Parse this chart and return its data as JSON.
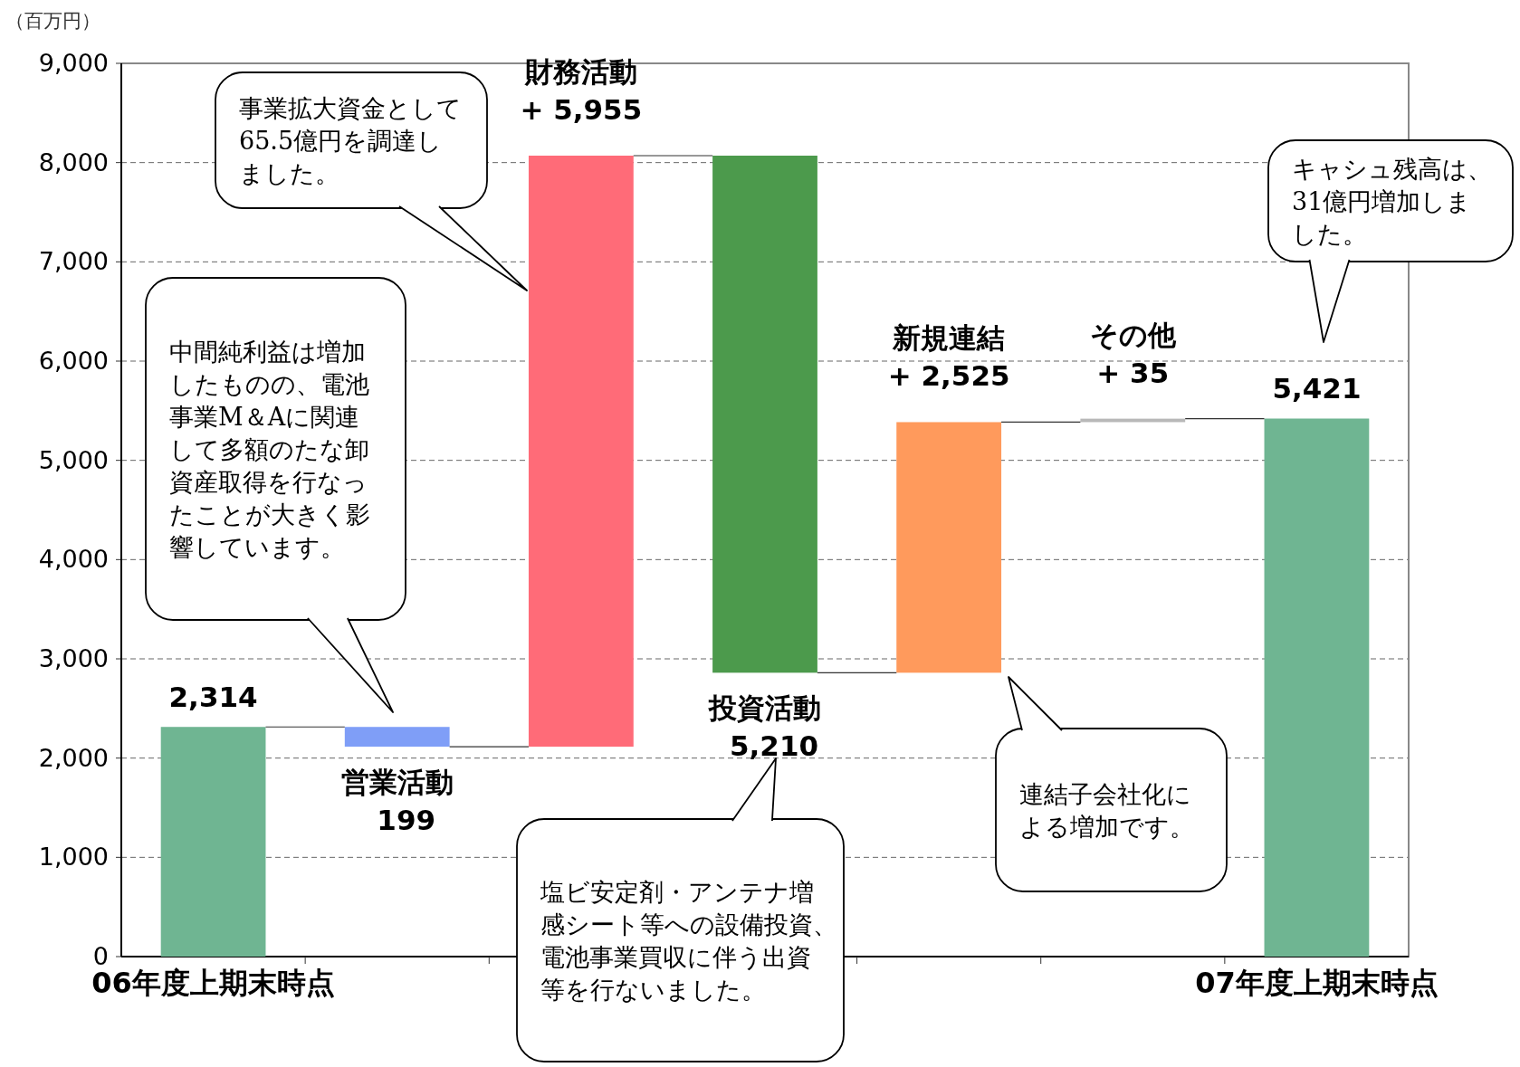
{
  "chart_data": {
    "type": "bar",
    "ylabel": "（百万円）",
    "categories": [
      "06年度上期末時点",
      null,
      null,
      null,
      null,
      null,
      "07年度上期末時点"
    ],
    "values": [
      2314,
      -199,
      5955,
      -5210,
      2525,
      35,
      5421
    ],
    "base": [
      0,
      2314,
      2115,
      8070,
      2860,
      5385,
      0
    ],
    "colors": [
      "#6fb592",
      "#7f9ef7",
      "#ff6b78",
      "#4c9a4c",
      "#ff9a5c",
      "#b8b8b8",
      "#6fb592"
    ],
    "value_labels": [
      "2,314",
      "営業活動\n199",
      "財務活動\n+ 5,955",
      "投資活動\n5,210",
      "新規連結\n+ 2,525",
      "その他\n+ 35",
      "5,421"
    ],
    "ylim": [
      0,
      9000
    ],
    "yticks": [
      0,
      {
        "value": 1000,
        "label": "1,000"
      },
      {
        "value": 2000,
        "label": "2,000"
      },
      {
        "value": 3000,
        "label": "3,000"
      },
      {
        "value": 4000,
        "label": "4,000"
      },
      {
        "value": 5000,
        "label": "5,000"
      },
      {
        "value": 6000,
        "label": "6,000"
      },
      {
        "value": 7000,
        "label": "7,000"
      },
      {
        "value": 8000,
        "label": "8,000"
      },
      {
        "value": 9000,
        "label": "9,000"
      }
    ],
    "grid": "y",
    "annotations": [
      "事業拡大資金として65.5億円を調達しました。",
      "中間純利益は増加したものの、電池事業M＆Aに関連して多額のたな卸資産取得を行なったことが大きく影響しています。",
      "塩ビ安定剤・アンテナ増感シート等への設備投資、電池事業買収に伴う出資等を行ないました。",
      "連結子会社化による増加です。",
      "キャシュ残高は、31億円増加しました。"
    ]
  }
}
